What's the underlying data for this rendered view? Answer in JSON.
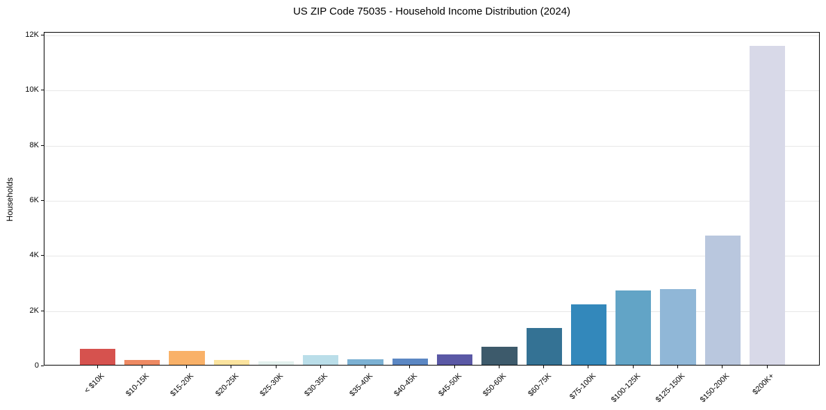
{
  "chart_data": {
    "type": "bar",
    "title": "US ZIP Code 75035 - Household Income Distribution (2024)",
    "xlabel": "",
    "ylabel": "Households",
    "categories": [
      "< $10K",
      "$10-15K",
      "$15-20K",
      "$20-25K",
      "$25-30K",
      "$30-35K",
      "$35-40K",
      "$40-45K",
      "$45-50K",
      "$50-60K",
      "$60-75K",
      "$75-100K",
      "$100-125K",
      "$125-150K",
      "$150-200K",
      "$200K+"
    ],
    "values": [
      570,
      170,
      510,
      180,
      130,
      350,
      200,
      240,
      390,
      650,
      1330,
      2200,
      2710,
      2760,
      4690,
      11560
    ],
    "bar_colors": [
      "#d6524e",
      "#ee8a63",
      "#f9b168",
      "#fbe39e",
      "#e3f1ee",
      "#badee9",
      "#7cb1d3",
      "#5b87c3",
      "#5a58a5",
      "#3d5a6b",
      "#347294",
      "#3388bb",
      "#62a4c6",
      "#90b7d7",
      "#b9c7de",
      "#d8d9e8"
    ],
    "yticks": [
      {
        "value": 0,
        "label": "0"
      },
      {
        "value": 2000,
        "label": "2K"
      },
      {
        "value": 4000,
        "label": "4K"
      },
      {
        "value": 6000,
        "label": "6K"
      },
      {
        "value": 8000,
        "label": "8K"
      },
      {
        "value": 10000,
        "label": "10K"
      },
      {
        "value": 12000,
        "label": "12K"
      }
    ],
    "ylim": [
      0,
      12100
    ],
    "grid": "horizontal-only",
    "grid_color": "#e7e7e7",
    "legend": "none",
    "spine_color": "#000000"
  }
}
